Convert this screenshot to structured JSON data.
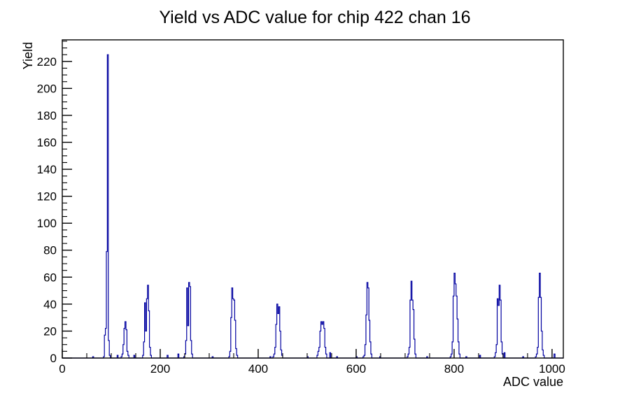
{
  "page": {
    "background": "#ffffff"
  },
  "chart_data": {
    "type": "bar",
    "subtype": "histogram-step-outline",
    "title": "Yield vs ADC value for chip 422 chan 16",
    "xlabel": "ADC value",
    "ylabel": "Yield",
    "xlim": [
      0,
      1023
    ],
    "ylim": [
      0,
      236
    ],
    "x_major_ticks": [
      0,
      200,
      400,
      600,
      800,
      1000
    ],
    "x_minor_tick_step": 50,
    "y_major_tick_step": 20,
    "y_minor_tick_step": 5,
    "y_top_label": 220,
    "grid": false,
    "legend": false,
    "line_color": "#0000a0",
    "axis_color": "#000000",
    "bin_width": 2,
    "bins": [
      [
        62,
        1
      ],
      [
        84,
        1
      ],
      [
        86,
        17
      ],
      [
        88,
        22
      ],
      [
        90,
        79
      ],
      [
        92,
        225
      ],
      [
        94,
        13
      ],
      [
        96,
        2
      ],
      [
        112,
        2
      ],
      [
        120,
        1
      ],
      [
        122,
        3
      ],
      [
        124,
        10
      ],
      [
        126,
        22
      ],
      [
        128,
        27
      ],
      [
        130,
        21
      ],
      [
        132,
        5
      ],
      [
        134,
        2
      ],
      [
        146,
        2
      ],
      [
        164,
        2
      ],
      [
        166,
        12
      ],
      [
        168,
        41
      ],
      [
        170,
        20
      ],
      [
        172,
        44
      ],
      [
        174,
        54
      ],
      [
        176,
        35
      ],
      [
        178,
        8
      ],
      [
        180,
        2
      ],
      [
        214,
        2
      ],
      [
        236,
        3
      ],
      [
        248,
        1
      ],
      [
        250,
        3
      ],
      [
        252,
        13
      ],
      [
        254,
        52
      ],
      [
        256,
        24
      ],
      [
        258,
        56
      ],
      [
        260,
        53
      ],
      [
        262,
        13
      ],
      [
        264,
        3
      ],
      [
        306,
        1
      ],
      [
        340,
        1
      ],
      [
        342,
        5
      ],
      [
        344,
        30
      ],
      [
        346,
        52
      ],
      [
        348,
        44
      ],
      [
        350,
        43
      ],
      [
        352,
        28
      ],
      [
        354,
        7
      ],
      [
        356,
        2
      ],
      [
        424,
        1
      ],
      [
        430,
        1
      ],
      [
        432,
        3
      ],
      [
        434,
        8
      ],
      [
        436,
        25
      ],
      [
        438,
        40
      ],
      [
        440,
        33
      ],
      [
        442,
        38
      ],
      [
        444,
        20
      ],
      [
        446,
        6
      ],
      [
        448,
        2
      ],
      [
        500,
        1
      ],
      [
        520,
        2
      ],
      [
        522,
        5
      ],
      [
        524,
        8
      ],
      [
        526,
        20
      ],
      [
        528,
        27
      ],
      [
        530,
        25
      ],
      [
        532,
        27
      ],
      [
        534,
        22
      ],
      [
        536,
        8
      ],
      [
        538,
        3
      ],
      [
        546,
        4
      ],
      [
        560,
        1
      ],
      [
        600,
        1
      ],
      [
        614,
        1
      ],
      [
        616,
        2
      ],
      [
        618,
        10
      ],
      [
        620,
        32
      ],
      [
        622,
        56
      ],
      [
        624,
        52
      ],
      [
        626,
        28
      ],
      [
        628,
        12
      ],
      [
        630,
        3
      ],
      [
        648,
        1
      ],
      [
        704,
        1
      ],
      [
        706,
        3
      ],
      [
        708,
        8
      ],
      [
        710,
        43
      ],
      [
        712,
        57
      ],
      [
        714,
        43
      ],
      [
        716,
        36
      ],
      [
        718,
        14
      ],
      [
        720,
        3
      ],
      [
        744,
        1
      ],
      [
        792,
        1
      ],
      [
        794,
        3
      ],
      [
        796,
        12
      ],
      [
        798,
        46
      ],
      [
        800,
        63
      ],
      [
        802,
        55
      ],
      [
        804,
        46
      ],
      [
        806,
        29
      ],
      [
        808,
        12
      ],
      [
        810,
        3
      ],
      [
        824,
        1
      ],
      [
        852,
        2
      ],
      [
        882,
        1
      ],
      [
        884,
        4
      ],
      [
        886,
        10
      ],
      [
        888,
        44
      ],
      [
        890,
        39
      ],
      [
        892,
        54
      ],
      [
        894,
        43
      ],
      [
        896,
        12
      ],
      [
        898,
        3
      ],
      [
        902,
        4
      ],
      [
        940,
        1
      ],
      [
        966,
        1
      ],
      [
        968,
        3
      ],
      [
        970,
        8
      ],
      [
        972,
        45
      ],
      [
        974,
        63
      ],
      [
        976,
        45
      ],
      [
        978,
        20
      ],
      [
        980,
        6
      ],
      [
        982,
        2
      ],
      [
        1004,
        3
      ]
    ]
  }
}
